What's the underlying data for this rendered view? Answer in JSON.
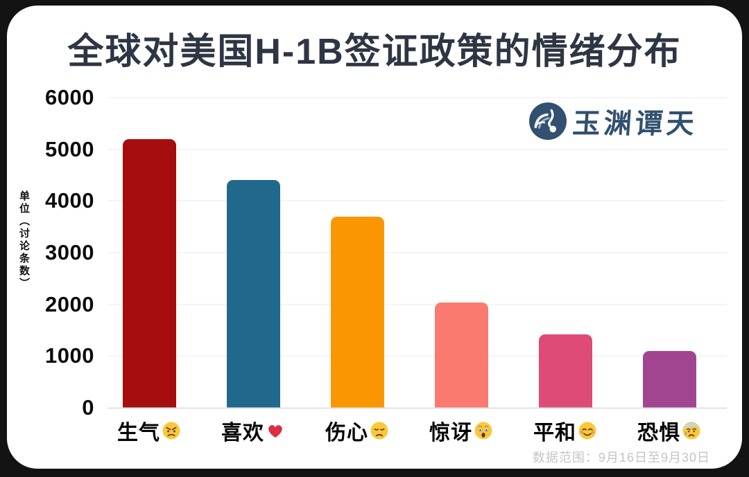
{
  "page": {
    "title": "全球对美国H-1B签证政策的情绪分布",
    "watermark": {
      "brand": "玉渊谭天",
      "icon": "yuyuan-tantian-logo"
    },
    "footnote": "数据范围：9月16日至9月30日"
  },
  "chart_data": {
    "type": "bar",
    "title": "全球对美国H-1B签证政策的情绪分布",
    "xlabel": "",
    "ylabel": "单位（讨论条数）",
    "ylim": [
      0,
      6000
    ],
    "yticks": [
      0,
      1000,
      2000,
      3000,
      4000,
      5000,
      6000
    ],
    "grid": true,
    "legend": "none",
    "categories": [
      "生气",
      "喜欢",
      "伤心",
      "惊讶",
      "平和",
      "恐惧"
    ],
    "category_emoji_names": [
      "angry-face",
      "red-heart",
      "disappointed-face",
      "astonished-face",
      "smiling-face-with-smiling-eyes",
      "anxious-face-with-sweat"
    ],
    "category_emoji_unicode": [
      "😠",
      "❤️",
      "😞",
      "😲",
      "😊",
      "😰"
    ],
    "values": [
      5190,
      4400,
      3690,
      2030,
      1415,
      1100
    ],
    "bar_colors": [
      "#a60d0e",
      "#21698c",
      "#fb9603",
      "#fa7a70",
      "#dd4b76",
      "#a24590"
    ]
  },
  "colors": {
    "frame_background": "#131313",
    "card_background": "#ffffff",
    "title_text": "#2e3543",
    "axis_text": "#0b0b0b",
    "gridline": "#e9e9e9",
    "baseline": "#dfe2e5",
    "footnote_text": "#c5c5c5",
    "brand_blue": "#32506f"
  }
}
